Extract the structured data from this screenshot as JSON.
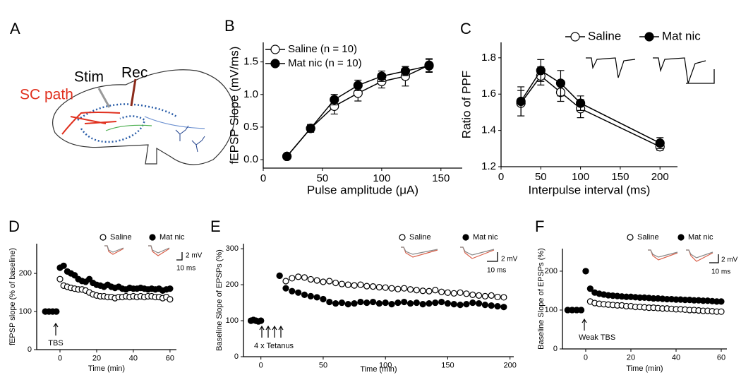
{
  "diagram": {
    "label": "A",
    "texts": [
      "SC path",
      "Stim",
      "Rec"
    ]
  },
  "chart_data": [
    {
      "type": "line",
      "label": "B",
      "x_label": "Pulse amplitude (μA)",
      "y_label": "fEPSP Slope (mV/ms)",
      "x": [
        20,
        40,
        60,
        80,
        100,
        120,
        140
      ],
      "series": [
        {
          "name": "Saline (n = 10)",
          "color": "#000000",
          "fill": "#ffffff",
          "values": [
            0.05,
            0.48,
            0.82,
            1.02,
            1.2,
            1.28,
            1.45
          ],
          "errors": [
            0.03,
            0.06,
            0.12,
            0.12,
            0.1,
            0.15,
            0.1
          ]
        },
        {
          "name": "Mat nic (n = 10)",
          "color": "#000000",
          "fill": "#000000",
          "values": [
            0.05,
            0.48,
            0.92,
            1.14,
            1.28,
            1.36,
            1.44
          ],
          "errors": [
            0.03,
            0.05,
            0.08,
            0.08,
            0.08,
            0.07,
            0.1
          ]
        }
      ],
      "xlim": [
        0,
        168
      ],
      "xticks": [
        0,
        50,
        100,
        150
      ],
      "ylim": [
        -0.13,
        1.8
      ],
      "yticks": [
        {
          "value": 0,
          "label": "0.0"
        },
        {
          "value": 0.5,
          "label": "0.5"
        },
        {
          "value": 1,
          "label": "1.0"
        },
        {
          "value": 1.5,
          "label": "1.5"
        }
      ]
    },
    {
      "type": "line",
      "label": "C",
      "x_label": "Interpulse interval (ms)",
      "y_label": "Ratio of PPF",
      "x": [
        25,
        50,
        75,
        100,
        200
      ],
      "series": [
        {
          "name": "Saline",
          "color": "#000000",
          "fill": "#ffffff",
          "values": [
            1.55,
            1.7,
            1.61,
            1.52,
            1.31
          ],
          "errors": [
            0.07,
            0.05,
            0.05,
            0.05,
            0.02
          ]
        },
        {
          "name": "Mat nic",
          "color": "#000000",
          "fill": "#000000",
          "values": [
            1.56,
            1.73,
            1.66,
            1.55,
            1.33
          ],
          "errors": [
            0.08,
            0.06,
            0.07,
            0.04,
            0.03
          ]
        }
      ],
      "xlim": [
        0,
        222
      ],
      "xticks": [
        0,
        50,
        100,
        150,
        200
      ],
      "ylim": [
        1.2,
        1.885
      ],
      "yticks": [
        {
          "value": 1.2,
          "label": "1.2"
        },
        {
          "value": 1.4,
          "label": "1.4"
        },
        {
          "value": 1.6,
          "label": "1.6"
        },
        {
          "value": 1.8,
          "label": "1.8"
        }
      ]
    },
    {
      "type": "scatter",
      "label": "D",
      "x_label": "Time (min)",
      "y_label": "fEPSP slope (% of baseline)",
      "annotation": "TBS",
      "scale_bar": [
        "2 mV",
        "10 ms"
      ],
      "x": [
        -8,
        -6,
        -4,
        -2,
        0,
        2,
        4,
        6,
        8,
        10,
        12,
        14,
        16,
        18,
        20,
        22,
        24,
        26,
        28,
        30,
        32,
        34,
        36,
        38,
        40,
        42,
        44,
        46,
        48,
        50,
        52,
        54,
        56,
        58,
        60
      ],
      "series": [
        {
          "name": "Saline",
          "color": "#000000",
          "fill": "#ffffff",
          "values": [
            100,
            100,
            100,
            100,
            185,
            168,
            165,
            162,
            160,
            158,
            158,
            155,
            150,
            145,
            142,
            140,
            140,
            138,
            138,
            135,
            138,
            138,
            140,
            138,
            140,
            138,
            140,
            138,
            140,
            140,
            138,
            138,
            135,
            138,
            132
          ]
        },
        {
          "name": "Mat nic",
          "color": "#000000",
          "fill": "#000000",
          "values": [
            100,
            100,
            100,
            100,
            215,
            220,
            205,
            200,
            195,
            185,
            180,
            178,
            185,
            175,
            170,
            168,
            165,
            170,
            165,
            162,
            165,
            160,
            158,
            162,
            160,
            160,
            162,
            160,
            158,
            160,
            158,
            160,
            155,
            158,
            160
          ]
        }
      ],
      "xlim": [
        -12.7,
        63.5
      ],
      "xticks": [
        0,
        20,
        40,
        60
      ],
      "ylim": [
        0,
        278
      ],
      "yticks": [
        0,
        100,
        200
      ]
    },
    {
      "type": "scatter",
      "label": "E",
      "x_label": "Time (min)",
      "y_label": "Baseline Slope of EPSPs (%)",
      "annotation": "4 x Tetanus",
      "scale_bar": [
        "2 mV",
        "10 ms"
      ],
      "x": [
        -8,
        -6,
        -4,
        -2,
        0,
        15,
        20,
        25,
        30,
        35,
        40,
        45,
        50,
        55,
        60,
        65,
        70,
        75,
        80,
        85,
        90,
        95,
        100,
        105,
        110,
        115,
        120,
        125,
        130,
        135,
        140,
        145,
        150,
        155,
        160,
        165,
        170,
        175,
        180,
        185,
        190,
        195
      ],
      "series": [
        {
          "name": "Saline",
          "color": "#000000",
          "fill": "#ffffff",
          "values": [
            100,
            102,
            100,
            98,
            100,
            225,
            210,
            218,
            222,
            220,
            215,
            212,
            208,
            210,
            205,
            202,
            200,
            198,
            200,
            196,
            195,
            193,
            192,
            190,
            188,
            190,
            187,
            185,
            183,
            182,
            185,
            180,
            178,
            176,
            178,
            175,
            172,
            170,
            168,
            170,
            166,
            165
          ]
        },
        {
          "name": "Mat nic",
          "color": "#000000",
          "fill": "#000000",
          "values": [
            100,
            102,
            100,
            98,
            100,
            225,
            190,
            182,
            178,
            172,
            168,
            165,
            160,
            152,
            148,
            150,
            146,
            148,
            152,
            150,
            152,
            148,
            150,
            146,
            150,
            152,
            148,
            150,
            146,
            148,
            150,
            152,
            148,
            146,
            144,
            146,
            150,
            148,
            144,
            142,
            140,
            138
          ]
        }
      ],
      "xlim": [
        -14,
        203
      ],
      "xticks": [
        0,
        50,
        100,
        150,
        200
      ],
      "ylim": [
        0,
        314
      ],
      "yticks": [
        0,
        100,
        200,
        300
      ]
    },
    {
      "type": "scatter",
      "label": "F",
      "x_label": "Time (min)",
      "y_label": "Baseline Slope of EPSPs (%)",
      "annotation": "Weak TBS",
      "scale_bar": [
        "2 mV",
        "10 ms"
      ],
      "x": [
        -8,
        -6,
        -4,
        -2,
        0,
        2,
        4,
        6,
        8,
        10,
        12,
        14,
        16,
        18,
        20,
        22,
        24,
        26,
        28,
        30,
        32,
        34,
        36,
        38,
        40,
        42,
        44,
        46,
        48,
        50,
        52,
        54,
        56,
        58,
        60
      ],
      "series": [
        {
          "name": "Saline",
          "color": "#000000",
          "fill": "#ffffff",
          "values": [
            100,
            100,
            100,
            100,
            200,
            122,
            118,
            116,
            115,
            114,
            113,
            112,
            112,
            110,
            110,
            108,
            108,
            107,
            106,
            106,
            105,
            104,
            104,
            103,
            102,
            102,
            101,
            100,
            100,
            99,
            98,
            98,
            97,
            96,
            96
          ]
        },
        {
          "name": "Mat nic",
          "color": "#000000",
          "fill": "#000000",
          "values": [
            100,
            100,
            100,
            100,
            200,
            155,
            145,
            142,
            140,
            138,
            137,
            136,
            135,
            134,
            134,
            133,
            132,
            132,
            131,
            130,
            130,
            129,
            128,
            128,
            127,
            127,
            126,
            126,
            125,
            125,
            124,
            124,
            123,
            122,
            122
          ]
        }
      ],
      "xlim": [
        -10.3,
        62.5
      ],
      "xticks": [
        0,
        20,
        40,
        60
      ],
      "ylim": [
        0,
        258
      ],
      "yticks": [
        0,
        100,
        200
      ]
    }
  ]
}
